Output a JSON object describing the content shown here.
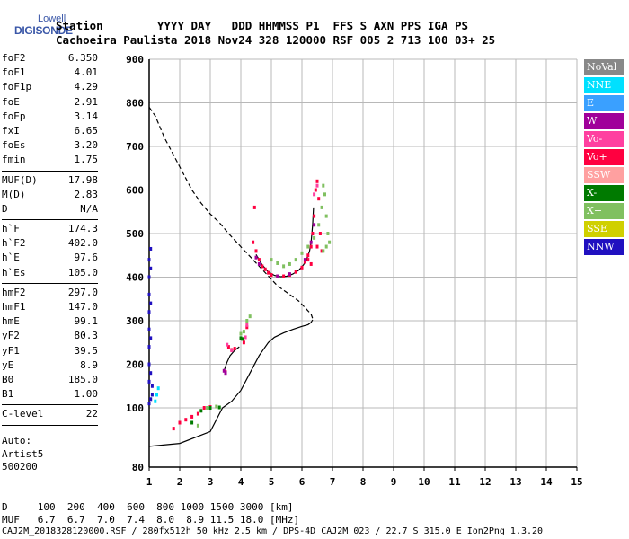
{
  "logo": {
    "line1": "Lowell",
    "line2": "DIGISONDE"
  },
  "header": {
    "row1": "Station        YYYY DAY   DDD HHMMSS P1  FFS S AXN PPS IGA PS",
    "row2": "Cachoeira Paulista 2018 Nov24 328 120000 RSF 005 2 713 100 03+ 25"
  },
  "params": [
    {
      "label": "foF2",
      "value": "6.350",
      "sep": false
    },
    {
      "label": "foF1",
      "value": "4.01",
      "sep": false
    },
    {
      "label": "foF1p",
      "value": "4.29",
      "sep": false
    },
    {
      "label": "foE",
      "value": "2.91",
      "sep": false
    },
    {
      "label": "foEp",
      "value": "3.14",
      "sep": false
    },
    {
      "label": "fxI",
      "value": "6.65",
      "sep": false
    },
    {
      "label": "foEs",
      "value": "3.20",
      "sep": false
    },
    {
      "label": "fmin",
      "value": "1.75",
      "sep": true
    },
    {
      "label": "MUF(D)",
      "value": "17.98",
      "sep": false
    },
    {
      "label": "M(D)",
      "value": "2.83",
      "sep": false
    },
    {
      "label": "D",
      "value": "N/A",
      "sep": true
    },
    {
      "label": "h`F",
      "value": "174.3",
      "sep": false
    },
    {
      "label": "h`F2",
      "value": "402.0",
      "sep": false
    },
    {
      "label": "h`E",
      "value": "97.6",
      "sep": false
    },
    {
      "label": "h`Es",
      "value": "105.0",
      "sep": true
    },
    {
      "label": "hmF2",
      "value": "297.0",
      "sep": false
    },
    {
      "label": "hmF1",
      "value": "147.0",
      "sep": false
    },
    {
      "label": "hmE",
      "value": "99.1",
      "sep": false
    },
    {
      "label": "yF2",
      "value": "80.3",
      "sep": false
    },
    {
      "label": "yF1",
      "value": "39.5",
      "sep": false
    },
    {
      "label": "yE",
      "value": "8.9",
      "sep": false
    },
    {
      "label": "B0",
      "value": "185.0",
      "sep": false
    },
    {
      "label": "B1",
      "value": "1.00",
      "sep": true
    },
    {
      "label": "C-level",
      "value": "22",
      "sep": true
    }
  ],
  "auto": {
    "line1": "Auto:",
    "line2": "Artist5",
    "line3": "500200"
  },
  "legend": [
    {
      "label": "NoVal",
      "color": "#888888"
    },
    {
      "label": "NNE",
      "color": "#00e0ff"
    },
    {
      "label": "E",
      "color": "#3aa0ff"
    },
    {
      "label": "W",
      "color": "#a0009a"
    },
    {
      "label": "Vo-",
      "color": "#ff40a0"
    },
    {
      "label": "Vo+",
      "color": "#ff0040"
    },
    {
      "label": "SSW",
      "color": "#ffa0a0"
    },
    {
      "label": "X-",
      "color": "#007a00"
    },
    {
      "label": "X+",
      "color": "#80c060"
    },
    {
      "label": "SSE",
      "color": "#d0d000"
    },
    {
      "label": "NNW",
      "color": "#2010c0"
    }
  ],
  "footer": {
    "row1": "D     100  200  400  600  800 1000 1500 3000 [km]",
    "row2": "MUF   6.7  6.7  7.0  7.4  8.0  8.9 11.5 18.0 [MHz]",
    "row3": "CAJ2M_2018328120000.RSF / 280fx512h 50 kHz 2.5 km / DPS-4D CAJ2M 023 / 22.7 S 315.0 E Ion2Png 1.3.20"
  },
  "chart_data": {
    "type": "scatter",
    "xlim": [
      1,
      15
    ],
    "ylim": [
      80,
      900
    ],
    "xticks": [
      "1",
      "2",
      "3",
      "4",
      "5",
      "6",
      "7",
      "8",
      "9",
      "10",
      "11",
      "12",
      "13",
      "14",
      "15"
    ],
    "yticks": [
      "100",
      "200",
      "300",
      "400",
      "500",
      "600",
      "700",
      "800",
      "900"
    ],
    "ytick_bottom": "80",
    "grid": true,
    "series": [
      {
        "name": "Vo+",
        "color": "#ff0040",
        "points": [
          [
            1.8,
            93
          ],
          [
            2.0,
            95
          ],
          [
            2.2,
            96
          ],
          [
            2.4,
            97
          ],
          [
            2.6,
            98
          ],
          [
            2.8,
            100
          ],
          [
            3.0,
            102
          ],
          [
            3.5,
            182
          ],
          [
            3.6,
            240
          ],
          [
            3.7,
            233
          ],
          [
            3.8,
            236
          ],
          [
            4.1,
            250
          ],
          [
            4.2,
            285
          ],
          [
            4.4,
            480
          ],
          [
            4.45,
            560
          ],
          [
            4.5,
            460
          ],
          [
            4.6,
            440
          ],
          [
            4.7,
            425
          ],
          [
            4.8,
            418
          ],
          [
            4.9,
            410
          ],
          [
            5.0,
            405
          ],
          [
            5.2,
            402
          ],
          [
            5.4,
            402
          ],
          [
            5.6,
            405
          ],
          [
            5.8,
            412
          ],
          [
            6.0,
            422
          ],
          [
            6.1,
            435
          ],
          [
            6.2,
            450
          ],
          [
            6.3,
            470
          ],
          [
            6.35,
            500
          ],
          [
            6.4,
            540
          ],
          [
            6.45,
            600
          ],
          [
            6.5,
            620
          ],
          [
            6.55,
            580
          ],
          [
            6.6,
            500
          ],
          [
            6.65,
            460
          ],
          [
            6.5,
            470
          ],
          [
            6.3,
            430
          ],
          [
            6.2,
            440
          ]
        ]
      },
      {
        "name": "X+",
        "color": "#80c060",
        "points": [
          [
            2.6,
            94
          ],
          [
            2.9,
            100
          ],
          [
            3.2,
            103
          ],
          [
            4.0,
            270
          ],
          [
            4.1,
            275
          ],
          [
            4.2,
            300
          ],
          [
            4.3,
            310
          ],
          [
            5.0,
            440
          ],
          [
            5.2,
            432
          ],
          [
            5.4,
            425
          ],
          [
            5.6,
            430
          ],
          [
            5.8,
            440
          ],
          [
            6.0,
            455
          ],
          [
            6.2,
            470
          ],
          [
            6.4,
            490
          ],
          [
            6.55,
            520
          ],
          [
            6.65,
            560
          ],
          [
            6.7,
            610
          ],
          [
            6.75,
            590
          ],
          [
            6.8,
            540
          ],
          [
            6.85,
            500
          ],
          [
            6.9,
            480
          ],
          [
            6.8,
            470
          ],
          [
            6.7,
            460
          ]
        ]
      },
      {
        "name": "X-",
        "color": "#007a00",
        "points": [
          [
            2.4,
            95
          ],
          [
            2.7,
            99
          ],
          [
            3.0,
            100
          ],
          [
            3.3,
            101
          ],
          [
            4.0,
            260
          ],
          [
            4.05,
            258
          ]
        ]
      },
      {
        "name": "W",
        "color": "#a0009a",
        "points": [
          [
            3.45,
            185
          ],
          [
            3.5,
            180
          ],
          [
            4.5,
            445
          ],
          [
            4.6,
            430
          ],
          [
            5.2,
            402
          ],
          [
            5.6,
            407
          ],
          [
            6.1,
            440
          ],
          [
            6.3,
            480
          ],
          [
            6.4,
            520
          ]
        ]
      },
      {
        "name": "NNE",
        "color": "#00e0ff",
        "points": [
          [
            1.2,
            115
          ],
          [
            1.25,
            130
          ],
          [
            1.3,
            145
          ]
        ]
      },
      {
        "name": "NNW",
        "color": "#2010c0",
        "points": [
          [
            1.0,
            110
          ],
          [
            1.0,
            160
          ],
          [
            1.0,
            200
          ],
          [
            1.0,
            240
          ],
          [
            1.0,
            280
          ],
          [
            1.0,
            320
          ],
          [
            1.0,
            360
          ],
          [
            1.0,
            400
          ],
          [
            1.0,
            440
          ],
          [
            1.05,
            120
          ],
          [
            1.05,
            180
          ],
          [
            1.05,
            260
          ],
          [
            1.05,
            340
          ],
          [
            1.05,
            420
          ],
          [
            1.05,
            465
          ],
          [
            1.1,
            130
          ],
          [
            1.1,
            150
          ]
        ]
      },
      {
        "name": "Vo-",
        "color": "#ff40a0",
        "points": [
          [
            3.55,
            245
          ],
          [
            3.7,
            232
          ],
          [
            4.15,
            262
          ],
          [
            4.2,
            290
          ],
          [
            6.4,
            590
          ],
          [
            6.5,
            610
          ]
        ]
      }
    ],
    "lines": [
      {
        "name": "trace",
        "color": "#000000",
        "style": "solid",
        "points": [
          [
            1.0,
            87
          ],
          [
            2.0,
            88
          ],
          [
            3.0,
            92
          ],
          [
            3.4,
            100
          ],
          [
            3.7,
            115
          ],
          [
            4.0,
            140
          ],
          [
            4.3,
            180
          ],
          [
            4.6,
            220
          ],
          [
            4.9,
            250
          ],
          [
            5.1,
            262
          ],
          [
            5.4,
            272
          ],
          [
            5.7,
            280
          ],
          [
            6.0,
            287
          ],
          [
            6.2,
            291
          ],
          [
            6.3,
            296
          ],
          [
            6.35,
            302
          ]
        ]
      },
      {
        "name": "profile",
        "color": "#000000",
        "style": "dashed",
        "points": [
          [
            1.0,
            790
          ],
          [
            1.2,
            770
          ],
          [
            1.5,
            720
          ],
          [
            1.8,
            680
          ],
          [
            2.1,
            640
          ],
          [
            2.4,
            600
          ],
          [
            2.7,
            570
          ],
          [
            3.0,
            545
          ],
          [
            3.3,
            525
          ],
          [
            3.6,
            500
          ],
          [
            4.0,
            470
          ],
          [
            4.4,
            440
          ],
          [
            4.8,
            410
          ],
          [
            5.2,
            380
          ],
          [
            5.6,
            360
          ],
          [
            5.9,
            345
          ],
          [
            6.1,
            330
          ],
          [
            6.3,
            315
          ],
          [
            6.35,
            305
          ]
        ]
      },
      {
        "name": "F2-trace",
        "color": "#000000",
        "style": "solid",
        "points": [
          [
            4.5,
            452
          ],
          [
            4.7,
            428
          ],
          [
            4.9,
            412
          ],
          [
            5.1,
            404
          ],
          [
            5.3,
            401
          ],
          [
            5.5,
            402
          ],
          [
            5.7,
            407
          ],
          [
            5.9,
            416
          ],
          [
            6.05,
            428
          ],
          [
            6.15,
            440
          ],
          [
            6.25,
            460
          ],
          [
            6.3,
            480
          ],
          [
            6.35,
            520
          ],
          [
            6.38,
            560
          ]
        ]
      },
      {
        "name": "F1-trace",
        "color": "#000000",
        "style": "solid",
        "points": [
          [
            3.45,
            185
          ],
          [
            3.55,
            205
          ],
          [
            3.65,
            220
          ],
          [
            3.8,
            232
          ],
          [
            3.95,
            240
          ]
        ]
      }
    ]
  }
}
